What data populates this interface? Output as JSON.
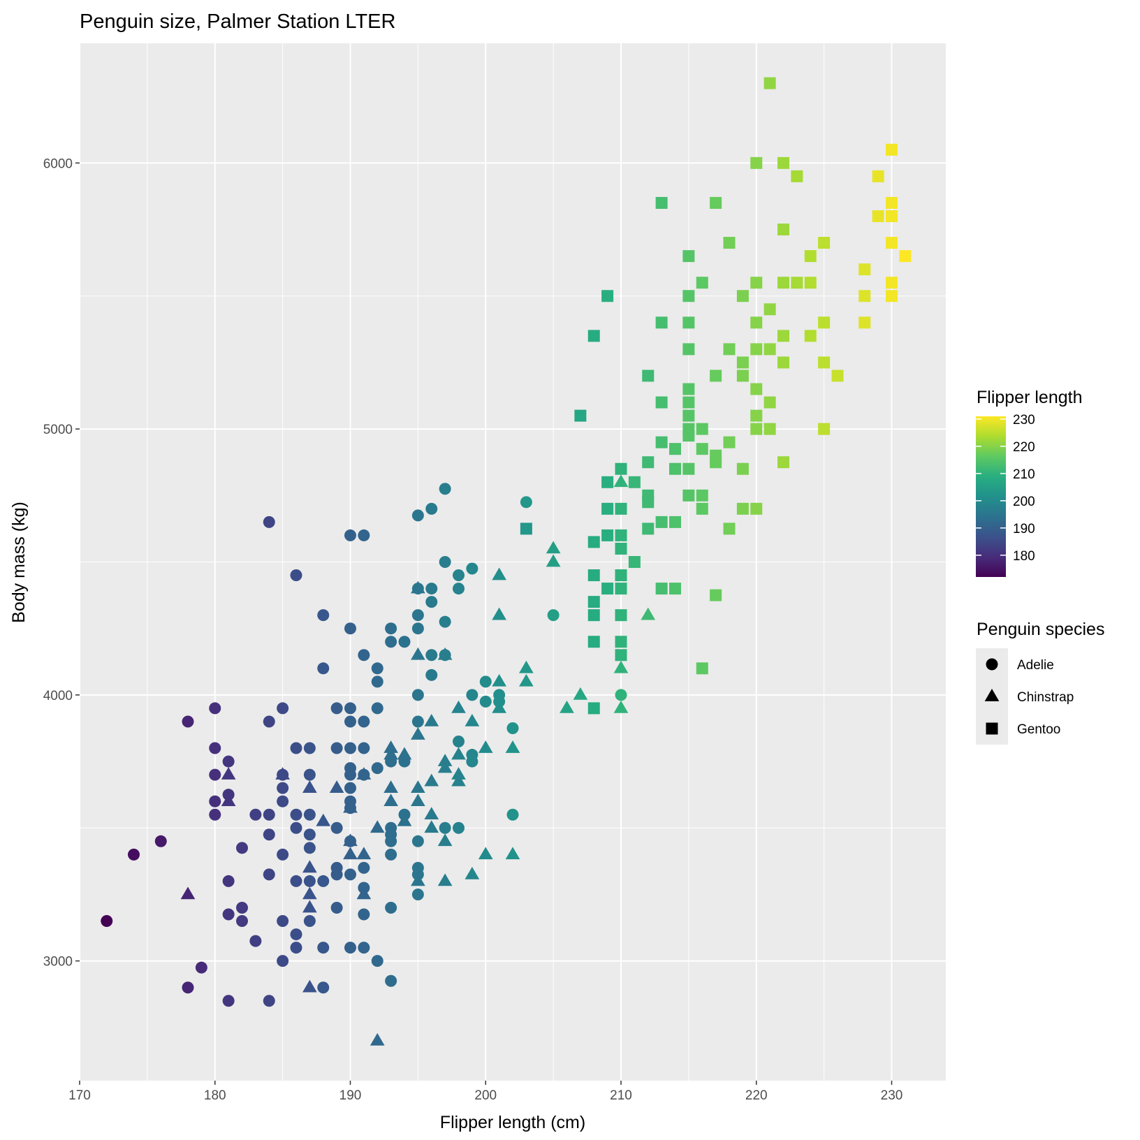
{
  "chart_data": {
    "type": "scatter",
    "title": "Penguin size, Palmer Station LTER",
    "xlabel": "Flipper length (cm)",
    "ylabel": "Body mass (kg)",
    "xlim": [
      170,
      234
    ],
    "ylim": [
      2550,
      6450
    ],
    "x_ticks": [
      170,
      180,
      190,
      200,
      210,
      220,
      230
    ],
    "y_ticks": [
      3000,
      4000,
      5000,
      6000
    ],
    "grid": true,
    "legend_position": "right",
    "color_scale": {
      "title": "Flipper length",
      "palette": "viridis",
      "domain": [
        172,
        231
      ],
      "ticks": [
        180,
        190,
        200,
        210,
        220,
        230
      ]
    },
    "shape_legend": {
      "title": "Penguin species",
      "entries": [
        {
          "name": "Adelie",
          "shape": "circle"
        },
        {
          "name": "Chinstrap",
          "shape": "triangle"
        },
        {
          "name": "Gentoo",
          "shape": "square"
        }
      ]
    },
    "series": [
      {
        "name": "Adelie",
        "shape": "circle",
        "points": [
          [
            172,
            3150
          ],
          [
            174,
            3400
          ],
          [
            176,
            3450
          ],
          [
            178,
            3900
          ],
          [
            178,
            2900
          ],
          [
            179,
            2975
          ],
          [
            180,
            3950
          ],
          [
            180,
            3800
          ],
          [
            180,
            3700
          ],
          [
            180,
            3600
          ],
          [
            180,
            3550
          ],
          [
            181,
            3750
          ],
          [
            181,
            3625
          ],
          [
            181,
            3300
          ],
          [
            181,
            3175
          ],
          [
            181,
            2850
          ],
          [
            182,
            3425
          ],
          [
            182,
            3200
          ],
          [
            182,
            3150
          ],
          [
            183,
            3550
          ],
          [
            183,
            3075
          ],
          [
            184,
            4650
          ],
          [
            184,
            3900
          ],
          [
            184,
            3550
          ],
          [
            184,
            3475
          ],
          [
            184,
            3325
          ],
          [
            184,
            2850
          ],
          [
            185,
            3950
          ],
          [
            185,
            3700
          ],
          [
            185,
            3650
          ],
          [
            185,
            3600
          ],
          [
            185,
            3400
          ],
          [
            185,
            3150
          ],
          [
            185,
            3000
          ],
          [
            186,
            4450
          ],
          [
            186,
            3800
          ],
          [
            186,
            3550
          ],
          [
            186,
            3500
          ],
          [
            186,
            3300
          ],
          [
            186,
            3100
          ],
          [
            186,
            3050
          ],
          [
            187,
            3800
          ],
          [
            187,
            3700
          ],
          [
            187,
            3550
          ],
          [
            187,
            3475
          ],
          [
            187,
            3425
          ],
          [
            187,
            3300
          ],
          [
            187,
            3150
          ],
          [
            188,
            4300
          ],
          [
            188,
            4100
          ],
          [
            188,
            3300
          ],
          [
            188,
            3050
          ],
          [
            188,
            2900
          ],
          [
            189,
            3950
          ],
          [
            189,
            3800
          ],
          [
            189,
            3500
          ],
          [
            189,
            3350
          ],
          [
            189,
            3325
          ],
          [
            189,
            3200
          ],
          [
            190,
            4600
          ],
          [
            190,
            4250
          ],
          [
            190,
            3950
          ],
          [
            190,
            3900
          ],
          [
            190,
            3800
          ],
          [
            190,
            3725
          ],
          [
            190,
            3700
          ],
          [
            190,
            3650
          ],
          [
            190,
            3600
          ],
          [
            190,
            3575
          ],
          [
            190,
            3450
          ],
          [
            190,
            3325
          ],
          [
            190,
            3050
          ],
          [
            191,
            4600
          ],
          [
            191,
            4150
          ],
          [
            191,
            3900
          ],
          [
            191,
            3800
          ],
          [
            191,
            3700
          ],
          [
            191,
            3350
          ],
          [
            191,
            3275
          ],
          [
            191,
            3175
          ],
          [
            191,
            3050
          ],
          [
            192,
            4100
          ],
          [
            192,
            4050
          ],
          [
            192,
            3950
          ],
          [
            192,
            3725
          ],
          [
            192,
            3000
          ],
          [
            193,
            4250
          ],
          [
            193,
            4200
          ],
          [
            193,
            3750
          ],
          [
            193,
            3500
          ],
          [
            193,
            3475
          ],
          [
            193,
            3450
          ],
          [
            193,
            3400
          ],
          [
            193,
            3200
          ],
          [
            193,
            2925
          ],
          [
            194,
            4200
          ],
          [
            194,
            3750
          ],
          [
            194,
            3550
          ],
          [
            195,
            4675
          ],
          [
            195,
            4400
          ],
          [
            195,
            4300
          ],
          [
            195,
            4250
          ],
          [
            195,
            4000
          ],
          [
            195,
            3900
          ],
          [
            195,
            3450
          ],
          [
            195,
            3350
          ],
          [
            195,
            3325
          ],
          [
            195,
            3250
          ],
          [
            196,
            4700
          ],
          [
            196,
            4400
          ],
          [
            196,
            4350
          ],
          [
            196,
            4150
          ],
          [
            196,
            4075
          ],
          [
            197,
            4775
          ],
          [
            197,
            4500
          ],
          [
            197,
            4275
          ],
          [
            197,
            4150
          ],
          [
            197,
            3500
          ],
          [
            198,
            4450
          ],
          [
            198,
            4400
          ],
          [
            198,
            3825
          ],
          [
            198,
            3500
          ],
          [
            199,
            4475
          ],
          [
            199,
            4000
          ],
          [
            199,
            3775
          ],
          [
            199,
            3750
          ],
          [
            200,
            4050
          ],
          [
            200,
            3975
          ],
          [
            201,
            4000
          ],
          [
            201,
            3975
          ],
          [
            202,
            3875
          ],
          [
            202,
            3550
          ],
          [
            203,
            4725
          ],
          [
            205,
            4300
          ],
          [
            210,
            4000
          ]
        ]
      },
      {
        "name": "Chinstrap",
        "shape": "triangle",
        "points": [
          [
            178,
            3250
          ],
          [
            181,
            3700
          ],
          [
            181,
            3600
          ],
          [
            185,
            3700
          ],
          [
            187,
            3650
          ],
          [
            187,
            3350
          ],
          [
            187,
            3250
          ],
          [
            187,
            3200
          ],
          [
            187,
            2900
          ],
          [
            188,
            3525
          ],
          [
            189,
            3650
          ],
          [
            190,
            3450
          ],
          [
            190,
            3400
          ],
          [
            190,
            3575
          ],
          [
            191,
            3700
          ],
          [
            191,
            3400
          ],
          [
            191,
            3250
          ],
          [
            192,
            3500
          ],
          [
            192,
            2700
          ],
          [
            193,
            3800
          ],
          [
            193,
            3775
          ],
          [
            193,
            3650
          ],
          [
            193,
            3600
          ],
          [
            194,
            3775
          ],
          [
            194,
            3525
          ],
          [
            195,
            4400
          ],
          [
            195,
            4150
          ],
          [
            195,
            3850
          ],
          [
            195,
            3650
          ],
          [
            195,
            3600
          ],
          [
            195,
            3300
          ],
          [
            196,
            3900
          ],
          [
            196,
            3675
          ],
          [
            196,
            3550
          ],
          [
            196,
            3500
          ],
          [
            197,
            4150
          ],
          [
            197,
            3750
          ],
          [
            197,
            3725
          ],
          [
            197,
            3450
          ],
          [
            197,
            3300
          ],
          [
            198,
            3950
          ],
          [
            198,
            3775
          ],
          [
            198,
            3700
          ],
          [
            198,
            3675
          ],
          [
            199,
            3900
          ],
          [
            199,
            3325
          ],
          [
            200,
            3800
          ],
          [
            200,
            3400
          ],
          [
            201,
            4450
          ],
          [
            201,
            4300
          ],
          [
            201,
            4050
          ],
          [
            201,
            3950
          ],
          [
            202,
            3800
          ],
          [
            202,
            3400
          ],
          [
            203,
            4100
          ],
          [
            203,
            4050
          ],
          [
            205,
            4550
          ],
          [
            205,
            4500
          ],
          [
            206,
            3950
          ],
          [
            207,
            4000
          ],
          [
            210,
            4800
          ],
          [
            210,
            4100
          ],
          [
            210,
            3950
          ],
          [
            212,
            4300
          ]
        ]
      },
      {
        "name": "Gentoo",
        "shape": "square",
        "points": [
          [
            203,
            4625
          ],
          [
            207,
            5050
          ],
          [
            208,
            5350
          ],
          [
            208,
            4575
          ],
          [
            208,
            4450
          ],
          [
            208,
            4350
          ],
          [
            208,
            4300
          ],
          [
            208,
            4200
          ],
          [
            208,
            3950
          ],
          [
            209,
            5500
          ],
          [
            209,
            4800
          ],
          [
            209,
            4700
          ],
          [
            209,
            4600
          ],
          [
            209,
            4400
          ],
          [
            210,
            4850
          ],
          [
            210,
            4700
          ],
          [
            210,
            4600
          ],
          [
            210,
            4550
          ],
          [
            210,
            4450
          ],
          [
            210,
            4400
          ],
          [
            210,
            4300
          ],
          [
            210,
            4200
          ],
          [
            210,
            4150
          ],
          [
            211,
            4800
          ],
          [
            211,
            4500
          ],
          [
            212,
            5200
          ],
          [
            212,
            4875
          ],
          [
            212,
            4750
          ],
          [
            212,
            4725
          ],
          [
            212,
            4625
          ],
          [
            213,
            5850
          ],
          [
            213,
            5400
          ],
          [
            213,
            5100
          ],
          [
            213,
            4950
          ],
          [
            213,
            4650
          ],
          [
            213,
            4400
          ],
          [
            214,
            4925
          ],
          [
            214,
            4850
          ],
          [
            214,
            4650
          ],
          [
            214,
            4400
          ],
          [
            215,
            5650
          ],
          [
            215,
            5500
          ],
          [
            215,
            5400
          ],
          [
            215,
            5300
          ],
          [
            215,
            5150
          ],
          [
            215,
            5100
          ],
          [
            215,
            5050
          ],
          [
            215,
            5000
          ],
          [
            215,
            4975
          ],
          [
            215,
            4850
          ],
          [
            215,
            4750
          ],
          [
            216,
            5550
          ],
          [
            216,
            5000
          ],
          [
            216,
            4925
          ],
          [
            216,
            4750
          ],
          [
            216,
            4700
          ],
          [
            216,
            4100
          ],
          [
            217,
            5850
          ],
          [
            217,
            5200
          ],
          [
            217,
            4900
          ],
          [
            217,
            4875
          ],
          [
            217,
            4375
          ],
          [
            218,
            5700
          ],
          [
            218,
            5300
          ],
          [
            218,
            4950
          ],
          [
            218,
            4625
          ],
          [
            219,
            5500
          ],
          [
            219,
            5250
          ],
          [
            219,
            5200
          ],
          [
            219,
            4850
          ],
          [
            219,
            4700
          ],
          [
            220,
            6000
          ],
          [
            220,
            5550
          ],
          [
            220,
            5400
          ],
          [
            220,
            5300
          ],
          [
            220,
            5150
          ],
          [
            220,
            5050
          ],
          [
            220,
            5000
          ],
          [
            220,
            4700
          ],
          [
            221,
            6300
          ],
          [
            221,
            5450
          ],
          [
            221,
            5300
          ],
          [
            221,
            5100
          ],
          [
            221,
            5000
          ],
          [
            222,
            6000
          ],
          [
            222,
            5750
          ],
          [
            222,
            5550
          ],
          [
            222,
            5350
          ],
          [
            222,
            5250
          ],
          [
            222,
            4875
          ],
          [
            223,
            5950
          ],
          [
            223,
            5550
          ],
          [
            224,
            5650
          ],
          [
            224,
            5550
          ],
          [
            224,
            5350
          ],
          [
            225,
            5700
          ],
          [
            225,
            5400
          ],
          [
            225,
            5250
          ],
          [
            225,
            5000
          ],
          [
            226,
            5200
          ],
          [
            228,
            5600
          ],
          [
            228,
            5500
          ],
          [
            228,
            5400
          ],
          [
            229,
            5950
          ],
          [
            229,
            5800
          ],
          [
            230,
            6050
          ],
          [
            230,
            5850
          ],
          [
            230,
            5800
          ],
          [
            230,
            5700
          ],
          [
            230,
            5550
          ],
          [
            230,
            5500
          ],
          [
            231,
            5650
          ]
        ]
      }
    ]
  }
}
